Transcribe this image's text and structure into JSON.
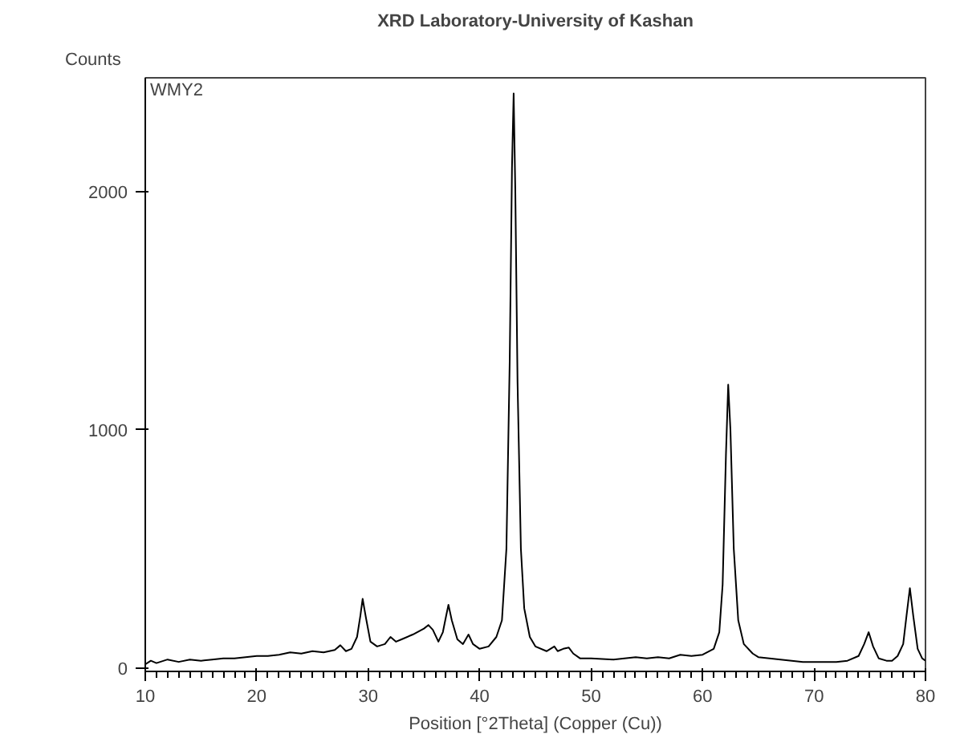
{
  "chart_data": {
    "type": "line",
    "title": "XRD Laboratory-University of Kashan",
    "xlabel": "Position [°2Theta] (Copper (Cu))",
    "ylabel": "Counts",
    "annotations": [
      "WMY2"
    ],
    "series": [
      {
        "color": "#000000",
        "x": [
          10,
          10.5,
          11,
          12,
          13,
          14,
          15,
          16,
          17,
          18,
          19,
          20,
          21,
          22,
          23,
          24,
          25,
          26,
          27,
          27.5,
          28,
          28.5,
          29,
          29.3,
          29.5,
          29.8,
          30.2,
          30.8,
          31.5,
          32,
          32.5,
          33,
          34,
          35,
          35.4,
          35.8,
          36.3,
          36.7,
          37.0,
          37.2,
          37.5,
          38,
          38.5,
          39,
          39.4,
          40,
          40.8,
          41.5,
          42,
          42.4,
          42.7,
          42.9,
          43.05,
          43.2,
          43.4,
          43.7,
          44,
          44.5,
          45,
          46,
          46.7,
          47,
          47.5,
          48,
          48.4,
          49,
          50,
          52,
          54,
          55,
          56,
          57,
          58,
          59,
          60,
          61,
          61.5,
          61.8,
          62.1,
          62.3,
          62.5,
          62.8,
          63.2,
          63.7,
          64.5,
          65,
          66,
          67,
          68,
          69,
          70,
          71,
          72,
          73,
          74,
          74.5,
          74.9,
          75.3,
          75.8,
          76.5,
          77,
          77.5,
          78,
          78.3,
          78.6,
          78.9,
          79.3,
          79.7,
          80
        ],
        "values": [
          15,
          30,
          20,
          35,
          25,
          35,
          30,
          35,
          40,
          40,
          45,
          50,
          50,
          55,
          65,
          60,
          70,
          65,
          75,
          95,
          70,
          80,
          130,
          220,
          290,
          210,
          110,
          90,
          100,
          130,
          110,
          120,
          140,
          165,
          180,
          160,
          110,
          150,
          220,
          265,
          200,
          120,
          100,
          140,
          100,
          80,
          90,
          130,
          200,
          500,
          1300,
          2100,
          2414,
          2000,
          1200,
          500,
          250,
          130,
          90,
          70,
          90,
          70,
          80,
          85,
          60,
          40,
          40,
          35,
          45,
          40,
          45,
          40,
          55,
          50,
          55,
          80,
          150,
          350,
          900,
          1190,
          1000,
          500,
          200,
          100,
          60,
          45,
          40,
          35,
          30,
          25,
          25,
          25,
          25,
          30,
          50,
          100,
          150,
          90,
          40,
          30,
          30,
          50,
          100,
          220,
          335,
          220,
          80,
          40,
          30
        ]
      }
    ],
    "xlim": [
      10,
      80
    ],
    "ylim": [
      -15,
      2480
    ],
    "xticks": [
      10,
      20,
      30,
      40,
      50,
      60,
      70,
      80
    ],
    "yticks": [
      0,
      1000,
      2000
    ],
    "grid": false,
    "line_style": "solid",
    "marker": "none"
  }
}
